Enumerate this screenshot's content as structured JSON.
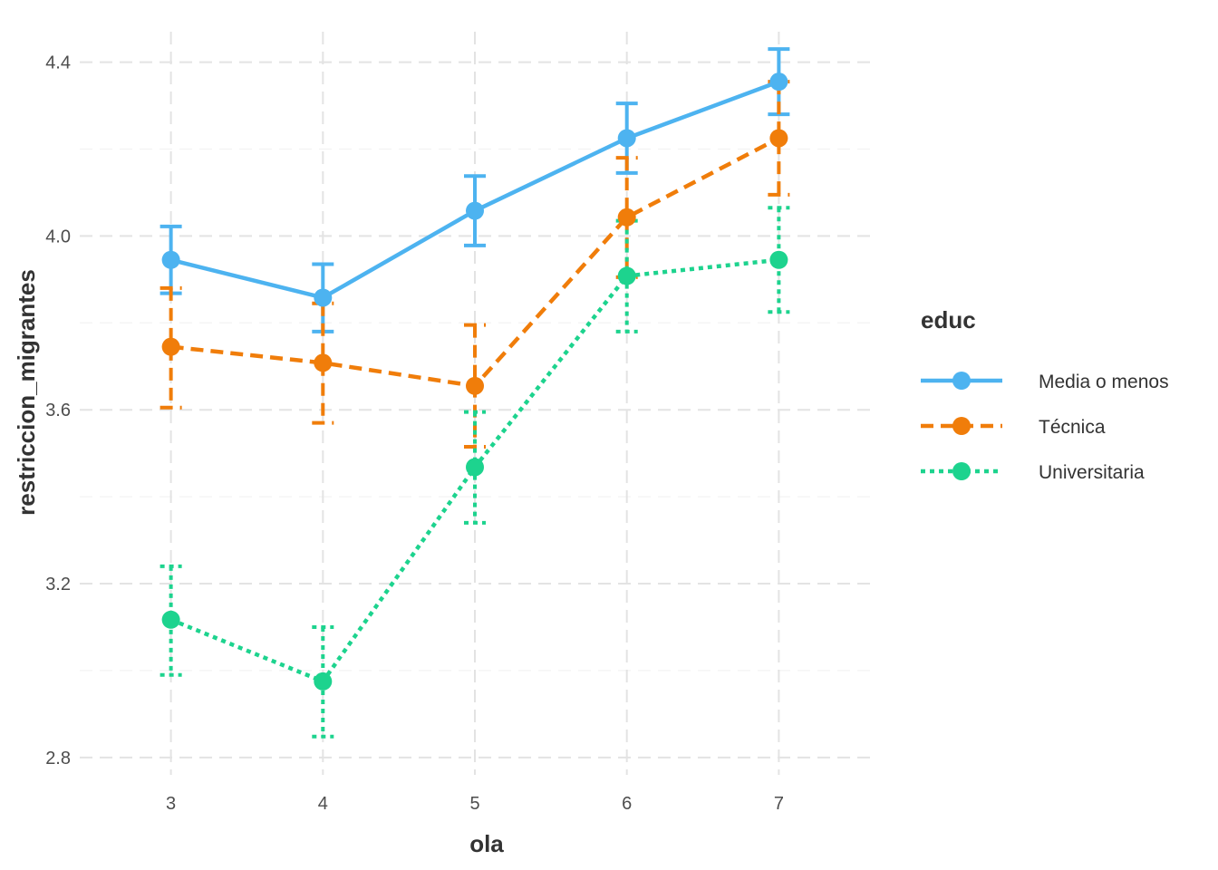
{
  "chart_data": {
    "type": "line",
    "xlabel": "ola",
    "ylabel": "restriccion_migrantes",
    "x": [
      3,
      4,
      5,
      6,
      7
    ],
    "xlim": [
      2.4,
      7.6
    ],
    "ylim": [
      2.76,
      4.47
    ],
    "yticks": [
      2.8,
      3.2,
      3.6,
      4.0,
      4.4
    ],
    "yticklabels": [
      "2.8",
      "3.2",
      "3.6",
      "4.0",
      "4.4"
    ],
    "xticklabels": [
      "3",
      "4",
      "5",
      "6",
      "7"
    ],
    "grid": true,
    "legend": {
      "title": "educ",
      "position": "right"
    },
    "series": [
      {
        "name": "Media o menos",
        "color": "#4db3f0",
        "linetype": "solid",
        "values": [
          3.945,
          3.858,
          4.058,
          4.225,
          4.355
        ],
        "error_low": [
          3.868,
          3.78,
          3.978,
          4.145,
          4.28
        ],
        "error_high": [
          4.022,
          3.935,
          4.138,
          4.305,
          4.43
        ]
      },
      {
        "name": "Técnica",
        "color": "#f07d0a",
        "linetype": "dashed",
        "values": [
          3.745,
          3.708,
          3.655,
          4.043,
          4.225
        ],
        "error_low": [
          3.605,
          3.57,
          3.515,
          3.905,
          4.095
        ],
        "error_high": [
          3.88,
          3.845,
          3.795,
          4.18,
          4.355
        ]
      },
      {
        "name": "Universitaria",
        "color": "#1dd38e",
        "linetype": "dotted",
        "values": [
          3.117,
          2.975,
          3.468,
          3.908,
          3.945
        ],
        "error_low": [
          2.99,
          2.848,
          3.34,
          3.78,
          3.825
        ],
        "error_high": [
          3.24,
          3.1,
          3.595,
          4.035,
          4.065
        ]
      }
    ]
  }
}
